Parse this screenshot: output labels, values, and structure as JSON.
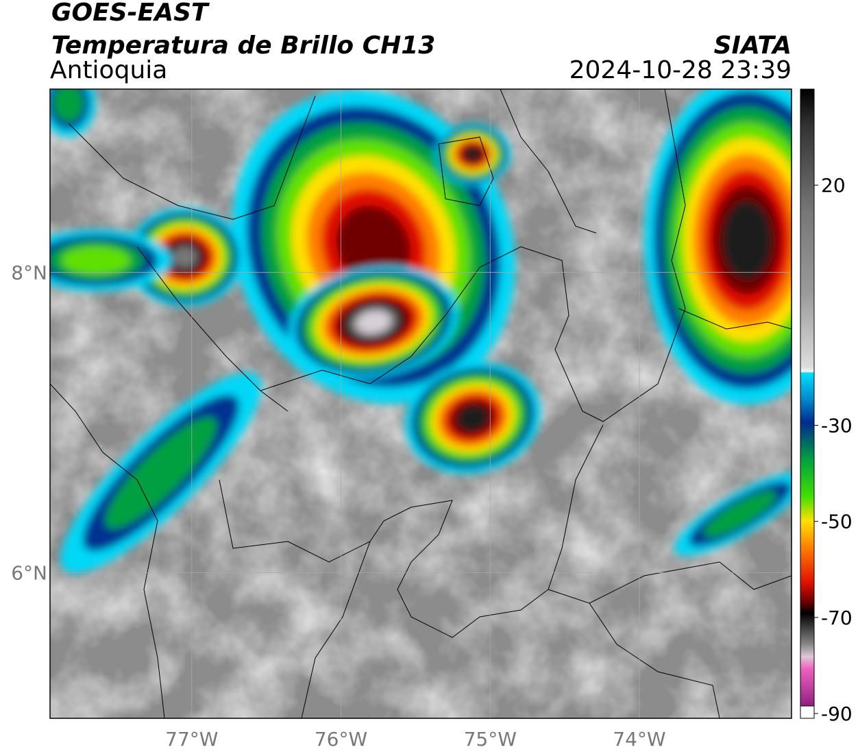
{
  "header": {
    "title": "GOES-EAST",
    "subtitle": "Temperatura de Brillo CH13",
    "region": "Antioquia",
    "source": "SIATA",
    "datetime": "2024-10-28 23:39"
  },
  "map": {
    "xlim": [
      -77.95,
      -72.98
    ],
    "ylim": [
      5.03,
      9.22
    ],
    "xticks": [
      {
        "value": -77,
        "label": "77°W"
      },
      {
        "value": -76,
        "label": "76°W"
      },
      {
        "value": -75,
        "label": "75°W"
      },
      {
        "value": -74,
        "label": "74°W"
      }
    ],
    "yticks": [
      {
        "value": 8,
        "label": "8°N"
      },
      {
        "value": 6,
        "label": "6°N"
      }
    ]
  },
  "colorbar": {
    "range": [
      -91,
      40
    ],
    "ticks": [
      20,
      -30,
      -50,
      -70,
      -90
    ]
  }
}
